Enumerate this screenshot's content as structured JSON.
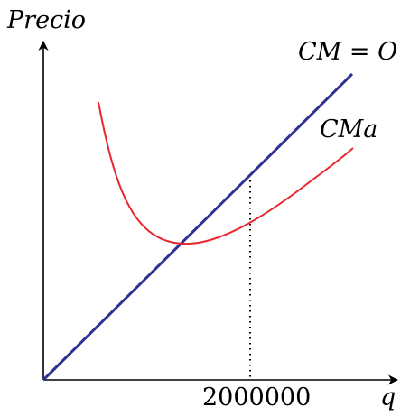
{
  "y_axis_label": "Precio",
  "x_axis_label": "q",
  "marked_quantity": "2000000",
  "curves": {
    "supply": {
      "label": "CM = O",
      "color": "#2e3192"
    },
    "average_cost": {
      "label": "CMa",
      "color": "#e8262d"
    }
  }
}
